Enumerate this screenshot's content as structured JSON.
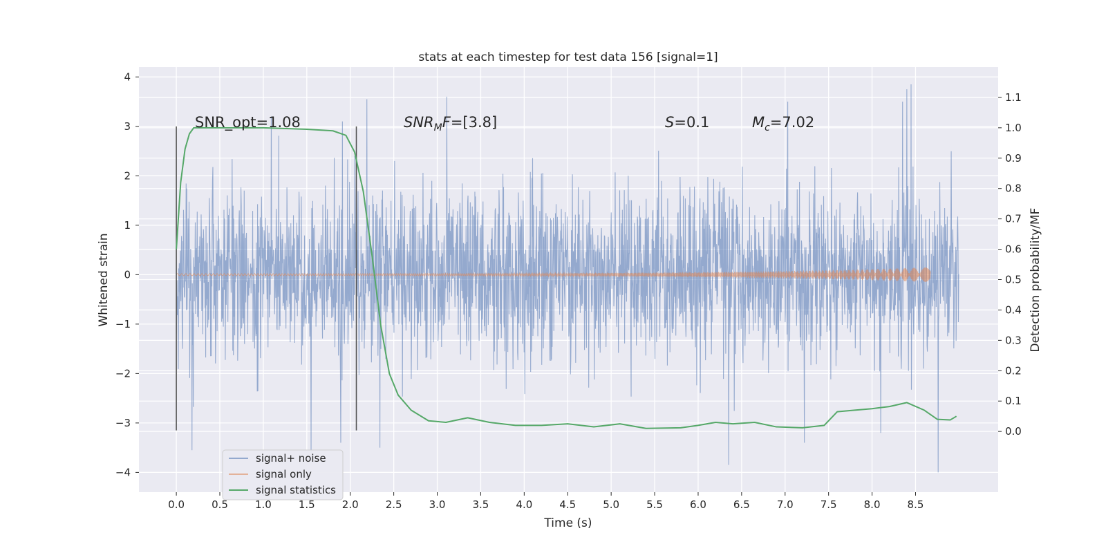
{
  "chart_data": {
    "type": "line",
    "title": "stats at each timestep for test data 156 [signal=1]",
    "xlabel": "Time (s)",
    "ylabel": "Whitened strain",
    "y2label": "Detection probability/MF",
    "xlim": [
      -0.43,
      9.45
    ],
    "ylim": [
      -4.4,
      4.2
    ],
    "y2lim": [
      -0.2,
      1.2
    ],
    "x_ticks": [
      "0.0",
      "0.5",
      "1.0",
      "1.5",
      "2.0",
      "2.5",
      "3.0",
      "3.5",
      "4.0",
      "4.5",
      "5.0",
      "5.5",
      "6.0",
      "6.5",
      "7.0",
      "7.5",
      "8.0",
      "8.5"
    ],
    "y_ticks": [
      "4",
      "3",
      "2",
      "1",
      "0",
      "−1",
      "−2",
      "−3",
      "−4"
    ],
    "y2_ticks": [
      "1.1",
      "1.0",
      "0.9",
      "0.8",
      "0.7",
      "0.6",
      "0.5",
      "0.4",
      "0.3",
      "0.2",
      "0.1",
      "0.0"
    ],
    "grid": true,
    "legend_position": "lower-left",
    "annotations": {
      "snr_opt": "SNR_opt=1.08",
      "snr_mf_main": "SNR",
      "snr_mf_sub": "M",
      "snr_mf_tail": "F=[3.8]",
      "s_main": "S",
      "s_tail": "=0.1",
      "mc_main": "M",
      "mc_sub": "c",
      "mc_tail": "=7.02"
    },
    "markers": {
      "vertical_lines_x": [
        0.0,
        2.07
      ],
      "vertical_lines_y": [
        -3.15,
        3.0
      ]
    },
    "series": [
      {
        "name": "signal+ noise",
        "color": "#4c72b0",
        "x_range": [
          0.0,
          9.0
        ],
        "envelope_typical": 1.2,
        "peaks": [
          [
            1.09,
            3.2
          ],
          [
            1.91,
            3.1
          ],
          [
            2.19,
            3.55
          ],
          [
            3.11,
            3.6
          ],
          [
            7.03,
            3.5
          ],
          [
            8.4,
            3.75
          ],
          [
            8.45,
            3.85
          ],
          [
            8.35,
            3.5
          ]
        ],
        "troughs": [
          [
            0.18,
            -3.55
          ],
          [
            1.55,
            -3.6
          ],
          [
            1.89,
            -3.4
          ],
          [
            2.34,
            -3.5
          ],
          [
            6.35,
            -3.85
          ],
          [
            7.22,
            -3.4
          ],
          [
            8.76,
            -4.0
          ],
          [
            8.1,
            -3.2
          ]
        ]
      },
      {
        "name": "signal only",
        "color": "#dd8452",
        "x_range": [
          0.0,
          8.67
        ],
        "amplitude_start": 0.02,
        "amplitude_end": 0.15
      },
      {
        "name": "signal statistics",
        "color": "#55a868",
        "axis": "right",
        "x": [
          0.0,
          0.05,
          0.1,
          0.15,
          0.2,
          0.3,
          0.5,
          1.0,
          1.5,
          1.8,
          1.95,
          2.05,
          2.15,
          2.25,
          2.35,
          2.45,
          2.55,
          2.7,
          2.9,
          3.1,
          3.35,
          3.6,
          3.9,
          4.2,
          4.5,
          4.8,
          5.1,
          5.4,
          5.8,
          6.0,
          6.2,
          6.4,
          6.65,
          6.9,
          7.2,
          7.45,
          7.6,
          7.8,
          8.0,
          8.2,
          8.4,
          8.6,
          8.75,
          8.9,
          8.97
        ],
        "y": [
          0.6,
          0.82,
          0.93,
          0.98,
          1.0,
          1.0,
          1.0,
          1.0,
          0.995,
          0.99,
          0.975,
          0.92,
          0.79,
          0.58,
          0.35,
          0.19,
          0.12,
          0.07,
          0.035,
          0.03,
          0.045,
          0.03,
          0.02,
          0.02,
          0.025,
          0.015,
          0.025,
          0.01,
          0.012,
          0.02,
          0.03,
          0.025,
          0.03,
          0.015,
          0.012,
          0.02,
          0.065,
          0.07,
          0.075,
          0.082,
          0.095,
          0.07,
          0.04,
          0.038,
          0.05
        ]
      }
    ]
  }
}
